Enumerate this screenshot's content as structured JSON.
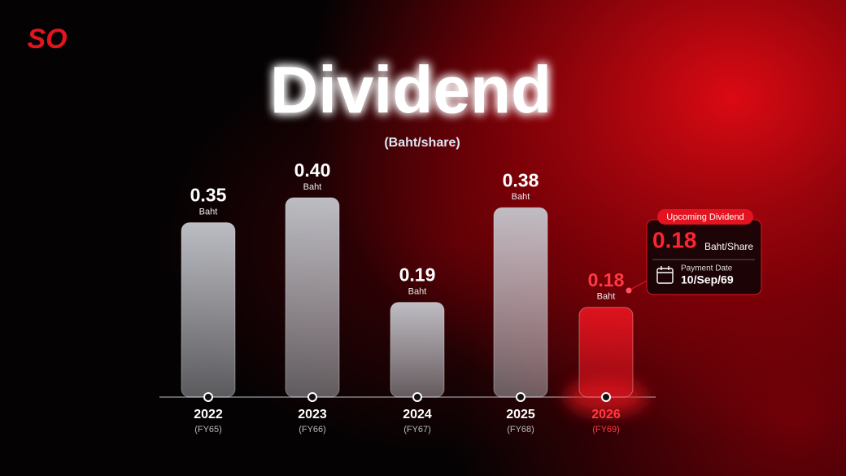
{
  "logo": "SO",
  "chart_data": {
    "type": "bar",
    "title": "Dividend",
    "subtitle": "(Baht/share)",
    "categories": [
      "2022",
      "2023",
      "2024",
      "2025",
      "2026"
    ],
    "sublabels": [
      "(FY65)",
      "(FY66)",
      "(FY67)",
      "(FY68)",
      "(FY69)"
    ],
    "values": [
      0.35,
      0.4,
      0.19,
      0.38,
      0.18
    ],
    "value_labels": [
      "0.35",
      "0.40",
      "0.19",
      "0.38",
      "0.18"
    ],
    "unit_label": "Baht",
    "colors": [
      "#c4c7cd",
      "#c4c7cd",
      "#c4c7cd",
      "#c4c7cd",
      "#e3141f"
    ],
    "callout": {
      "label": "Upcoming Dividend",
      "value": "0.18",
      "unit": "Baht/Share",
      "date_label": "Payment Date",
      "date": "10/Sep/69"
    }
  }
}
